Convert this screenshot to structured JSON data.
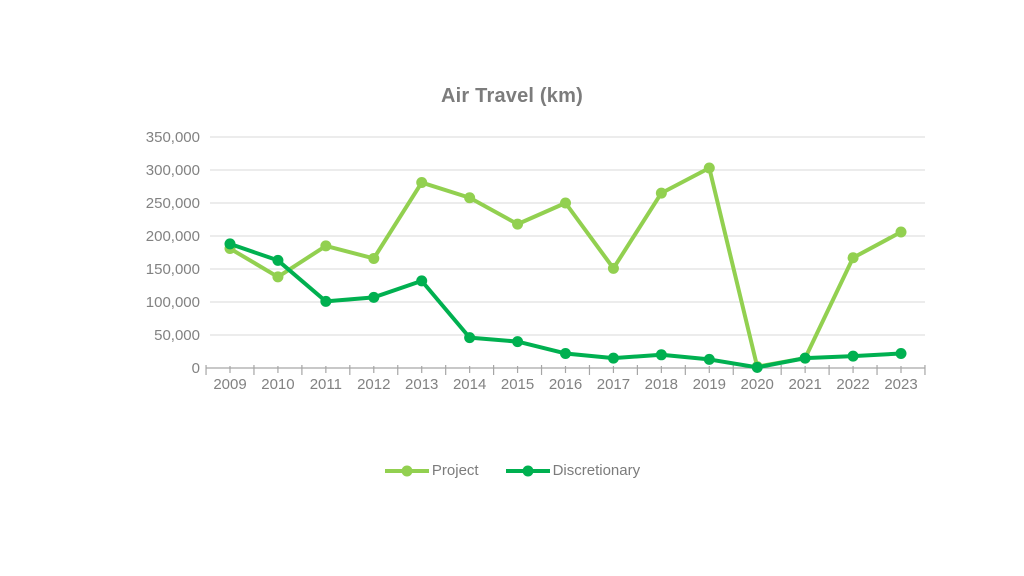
{
  "chart_data": {
    "type": "line",
    "title": "Air Travel (km)",
    "categories": [
      "2009",
      "2010",
      "2011",
      "2012",
      "2013",
      "2014",
      "2015",
      "2016",
      "2017",
      "2018",
      "2019",
      "2020",
      "2021",
      "2022",
      "2023"
    ],
    "series": [
      {
        "name": "Project",
        "color": "#92d050",
        "values": [
          181000,
          138000,
          185000,
          166000,
          281000,
          258000,
          218000,
          250000,
          151000,
          265000,
          303000,
          2000,
          15000,
          167000,
          206000
        ]
      },
      {
        "name": "Discretionary",
        "color": "#00b050",
        "values": [
          188000,
          163000,
          101000,
          107000,
          132000,
          46000,
          40000,
          22000,
          15000,
          20000,
          13000,
          1000,
          15000,
          18000,
          22000
        ]
      }
    ],
    "ylim": [
      0,
      350000
    ],
    "y_tick_step": 50000,
    "y_tick_labels": [
      "0",
      "50,000",
      "100,000",
      "150,000",
      "200,000",
      "250,000",
      "300,000",
      "350,000"
    ],
    "xlabel": "",
    "ylabel": "",
    "grid": true,
    "legend_position": "bottom",
    "colors": {
      "title_text": "#7c7c7c",
      "axis_text": "#828282",
      "gridline": "#d9d9d9",
      "axis_line": "#a6a6a6",
      "background": "#ffffff"
    }
  }
}
